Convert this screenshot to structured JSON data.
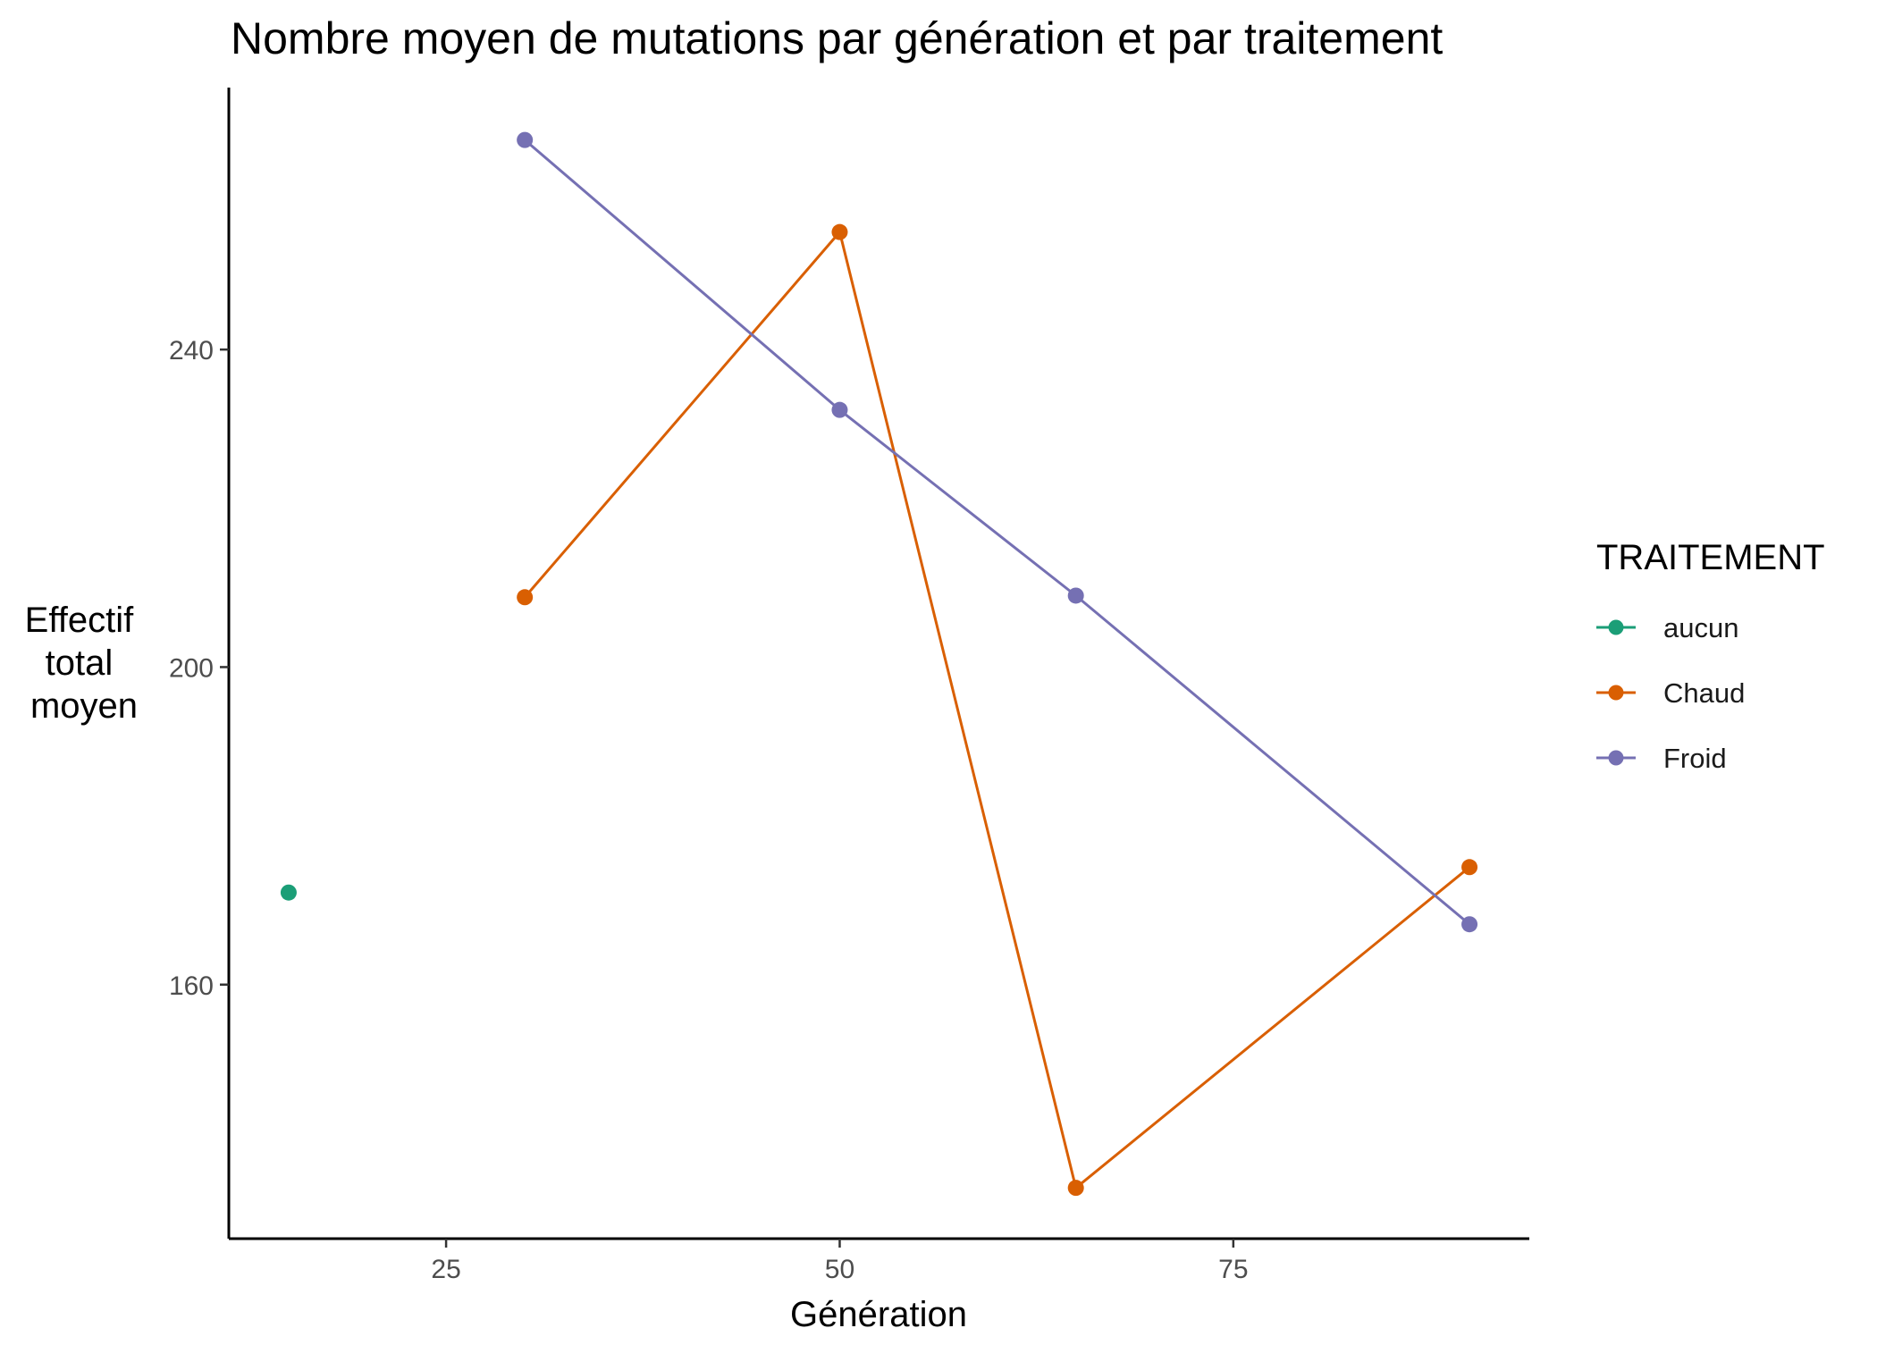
{
  "chart_data": {
    "type": "line",
    "title": "Nombre moyen de mutations par génération et par traitement",
    "xlabel": "Génération",
    "ylabel": [
      "Effectif",
      "total",
      "moyen"
    ],
    "xlim": [
      11.2,
      93.8
    ],
    "ylim": [
      128,
      273
    ],
    "xticks": [
      25,
      50,
      75
    ],
    "yticks": [
      160,
      200,
      240
    ],
    "grid": false,
    "legend": {
      "title": "TRAITEMENT",
      "position": "right"
    },
    "series": [
      {
        "name": "aucun",
        "color": "#1b9e77",
        "points": [
          {
            "x": 15,
            "y": 171.6
          }
        ]
      },
      {
        "name": "Chaud",
        "color": "#d95f02",
        "points": [
          {
            "x": 30,
            "y": 208.8
          },
          {
            "x": 50,
            "y": 254.8
          },
          {
            "x": 65,
            "y": 134.4
          },
          {
            "x": 90,
            "y": 174.8
          }
        ]
      },
      {
        "name": "Froid",
        "color": "#7570b3",
        "points": [
          {
            "x": 30,
            "y": 266.4
          },
          {
            "x": 50,
            "y": 232.4
          },
          {
            "x": 65,
            "y": 209.0
          },
          {
            "x": 90,
            "y": 167.6
          }
        ]
      }
    ]
  }
}
